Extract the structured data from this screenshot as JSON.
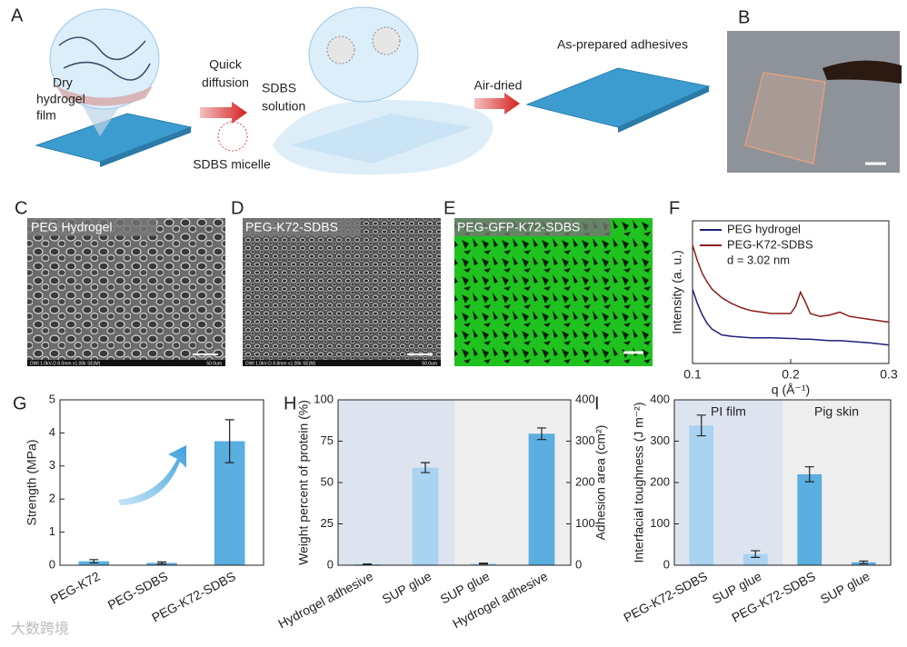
{
  "panel_labels": [
    "A",
    "B",
    "C",
    "D",
    "E",
    "F",
    "G",
    "H",
    "I"
  ],
  "panel_a": {
    "dry_film": [
      "Dry",
      "hydrogel",
      "film"
    ],
    "quick_diffusion": [
      "Quick",
      "diffusion"
    ],
    "micelle": "SDBS micelle",
    "solution": [
      "SDBS",
      "solution"
    ],
    "air_dried": "Air-dried",
    "adhesives": "As-prepared adhesives"
  },
  "micrographs": [
    {
      "label": "PEG Hydrogel",
      "footer": "DWI 1.0kV-D 8.0mm x1.00k SE(M)",
      "scale": "50.0um"
    },
    {
      "label": "PEG-K72-SDBS",
      "footer": "DWI 1.0kV-D 8.8mm x1.00k SE(M)",
      "scale": "50.0um"
    },
    {
      "label": "PEG-GFP-K72-SDBS"
    }
  ],
  "watermark": "大数跨境",
  "chart_data": [
    {
      "type": "line",
      "xlabel": "q (Å⁻¹)",
      "ylabel": "Intensity (a. u.)",
      "annotation": "d = 3.02 nm",
      "x": [
        0.1,
        0.105,
        0.11,
        0.115,
        0.12,
        0.13,
        0.14,
        0.15,
        0.16,
        0.18,
        0.2,
        0.205,
        0.21,
        0.215,
        0.22,
        0.23,
        0.24,
        0.25,
        0.26,
        0.28,
        0.3
      ],
      "series": [
        {
          "name": "PEG hydrogel",
          "color": "#1f1f7a",
          "values": [
            5.2,
            4.2,
            3.4,
            2.8,
            2.4,
            2.0,
            1.9,
            1.85,
            1.8,
            1.8,
            1.75,
            1.75,
            1.7,
            1.7,
            1.7,
            1.65,
            1.6,
            1.6,
            1.55,
            1.45,
            1.3
          ]
        },
        {
          "name": "PEG-K72-SDBS",
          "color": "#8b1a1a",
          "values": [
            8.3,
            7.2,
            6.3,
            5.7,
            5.2,
            4.6,
            4.2,
            3.9,
            3.7,
            3.5,
            3.5,
            4.0,
            5.0,
            4.3,
            3.5,
            3.3,
            3.4,
            3.6,
            3.3,
            3.1,
            2.9
          ]
        }
      ],
      "xlim": [
        0.1,
        0.3
      ],
      "xticks": [
        0.1,
        0.2,
        0.3
      ],
      "ylim": [
        0,
        10
      ],
      "legend": "upper-left"
    },
    {
      "type": "bar",
      "ylabel": "Strength (MPa)",
      "categories": [
        "PEG-K72",
        "PEG-SDBS",
        "PEG-K72-SDBS"
      ],
      "values": [
        0.12,
        0.07,
        3.75
      ],
      "errors": [
        0.05,
        0.03,
        0.65
      ],
      "colors": [
        "#5aaee0",
        "#5aaee0",
        "#5aaee0"
      ],
      "ylim": [
        0,
        5
      ],
      "yticks": [
        0,
        1,
        2,
        3,
        4,
        5
      ]
    },
    {
      "type": "bar",
      "ylabel": "Weight percent of protein (%)",
      "y2label": "Adhesion area (cm²)",
      "categories": [
        "Hydrogel adhesive",
        "SUP glue",
        "SUP glue",
        "Hydrogel adhesive"
      ],
      "series": [
        {
          "values": [
            0.5,
            59,
            null,
            null
          ],
          "errors": [
            0.3,
            3,
            null,
            null
          ]
        },
        {
          "axis": "y2",
          "values": [
            null,
            null,
            4,
            318
          ],
          "errors": [
            null,
            null,
            1,
            14
          ]
        }
      ],
      "colors": [
        "#5aaee0",
        "#a9d3f0",
        "#a9d3f0",
        "#5aaee0"
      ],
      "backgrounds": [
        "#dde4ef",
        "#eeeeee"
      ],
      "ylim": [
        0,
        100
      ],
      "yticks": [
        0,
        25,
        50,
        75,
        100
      ],
      "y2lim": [
        0,
        400
      ],
      "y2ticks": [
        0,
        100,
        200,
        300,
        400
      ]
    },
    {
      "type": "bar",
      "ylabel": "Interfacial toughness (J m⁻²)",
      "categories": [
        "PEG-K72-SDBS",
        "SUP glue",
        "PEG-K72-SDBS",
        "SUP glue"
      ],
      "values": [
        338,
        27,
        220,
        7
      ],
      "errors": [
        25,
        8,
        18,
        3
      ],
      "colors": [
        "#a9d3f0",
        "#a9d3f0",
        "#5aaee0",
        "#5aaee0"
      ],
      "groups": [
        "PI film",
        "Pig skin"
      ],
      "backgrounds": [
        "#dde4ef",
        "#eeeeee"
      ],
      "ylim": [
        0,
        400
      ],
      "yticks": [
        0,
        100,
        200,
        300,
        400
      ]
    }
  ]
}
